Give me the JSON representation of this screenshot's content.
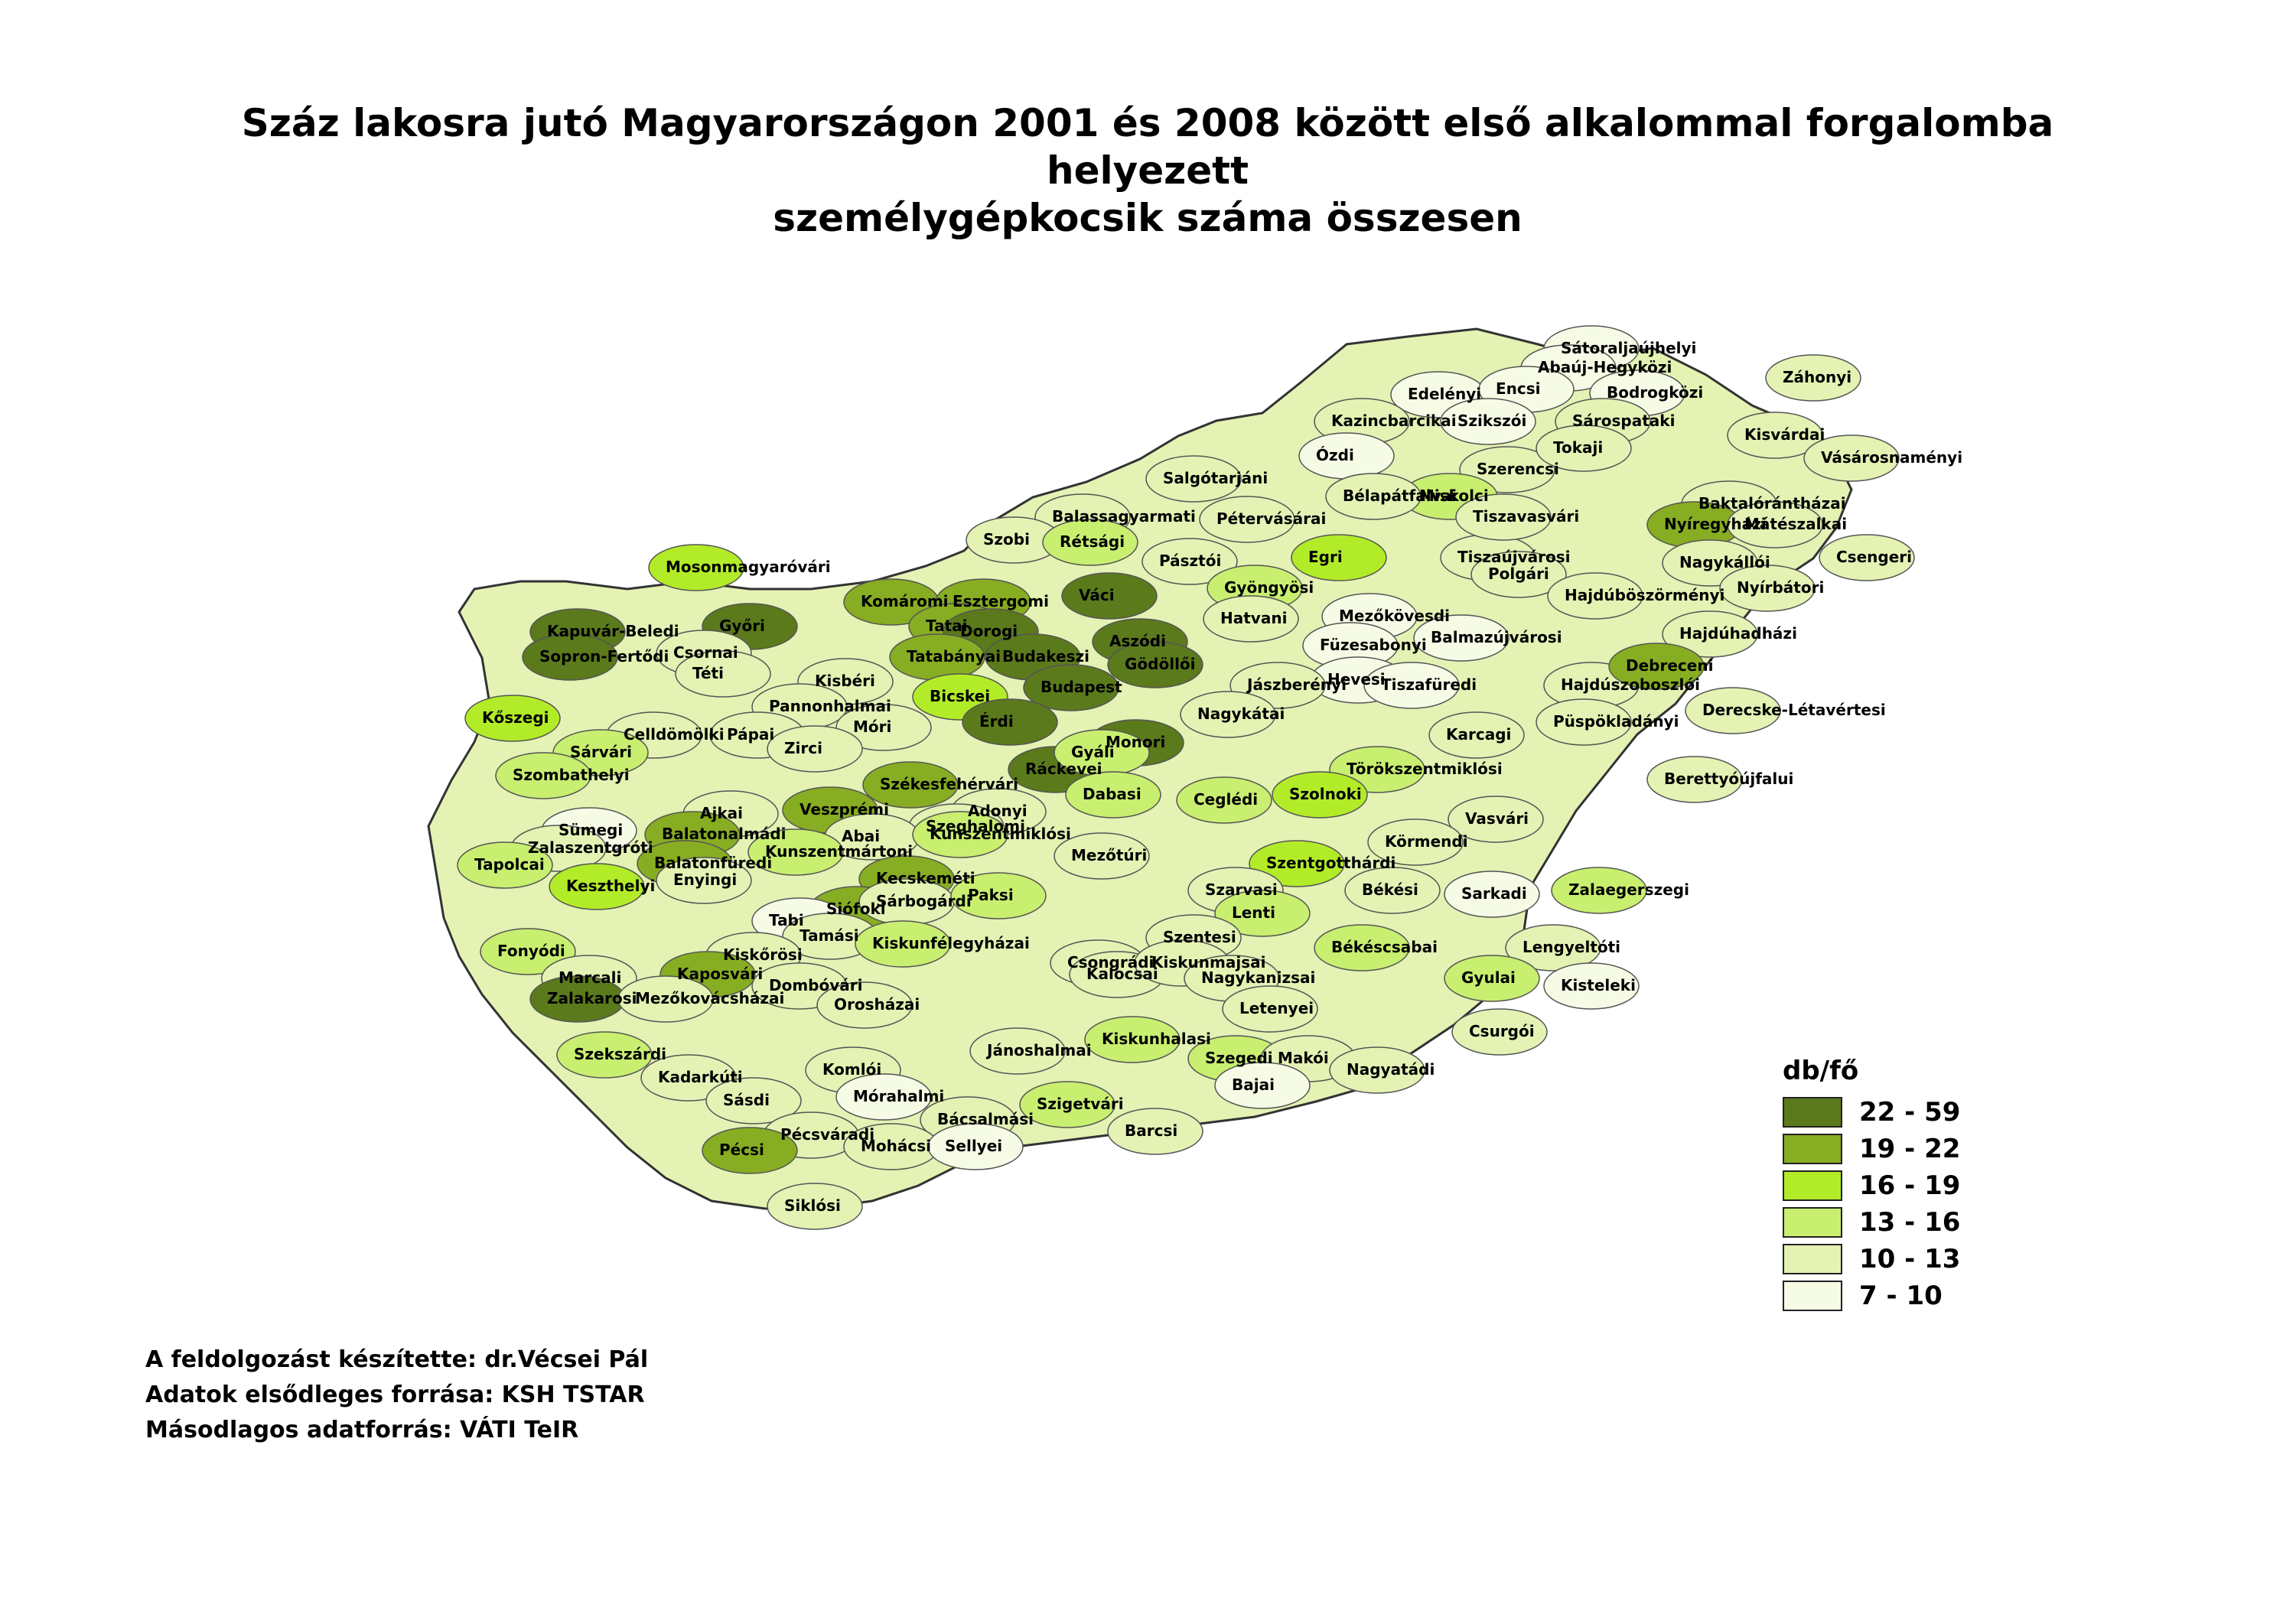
{
  "title": {
    "line1": "Száz lakosra jutó Magyarországon 2001 és 2008 között első alkalommal forgalomba helyezett",
    "line2": "személygépkocsik száma összesen"
  },
  "legend": {
    "title": "db/fő",
    "classes": [
      {
        "label": "22 - 59",
        "color": "#5b7a1c"
      },
      {
        "label": "19 - 22",
        "color": "#87ad22"
      },
      {
        "label": "16 - 19",
        "color": "#b2ec28"
      },
      {
        "label": "13 - 16",
        "color": "#c8ef70"
      },
      {
        "label": "10 - 13",
        "color": "#e4f2b4"
      },
      {
        "label": "7 - 10",
        "color": "#f6fbe6"
      }
    ]
  },
  "credits": [
    "A feldolgozást készítette: dr.Vécsei Pál",
    "Adatok elsődleges forrása: KSH TSTAR",
    "Másodlagos adatforrás: VÁTI TeIR"
  ],
  "regions": [
    {
      "name": "Sátoraljaújhelyi",
      "cls": 5
    },
    {
      "name": "Abaúj-Hegyközi",
      "cls": 5
    },
    {
      "name": "Edelényi",
      "cls": 5
    },
    {
      "name": "Encsi",
      "cls": 5
    },
    {
      "name": "Bodrogközi",
      "cls": 5
    },
    {
      "name": "Záhonyi",
      "cls": 4
    },
    {
      "name": "Kazincbarcikai",
      "cls": 4
    },
    {
      "name": "Szikszói",
      "cls": 5
    },
    {
      "name": "Sárospataki",
      "cls": 4
    },
    {
      "name": "Kisvárdai",
      "cls": 4
    },
    {
      "name": "Ózdi",
      "cls": 5
    },
    {
      "name": "Szerencsi",
      "cls": 4
    },
    {
      "name": "Tokaji",
      "cls": 4
    },
    {
      "name": "Vásárosnaményi",
      "cls": 4
    },
    {
      "name": "Salgótarjáni",
      "cls": 4
    },
    {
      "name": "Miskolci",
      "cls": 3
    },
    {
      "name": "Bélapátfalvai",
      "cls": 4
    },
    {
      "name": "Baktalórántházai",
      "cls": 4
    },
    {
      "name": "Balassagyarmati",
      "cls": 4
    },
    {
      "name": "Pétervásárai",
      "cls": 4
    },
    {
      "name": "Tiszaújvárosi",
      "cls": 4
    },
    {
      "name": "Nyíregyházi",
      "cls": 1
    },
    {
      "name": "Mátészalkai",
      "cls": 4
    },
    {
      "name": "Szobi",
      "cls": 4
    },
    {
      "name": "Rétsági",
      "cls": 3
    },
    {
      "name": "Pásztói",
      "cls": 4
    },
    {
      "name": "Egri",
      "cls": 2
    },
    {
      "name": "Tiszavasvári",
      "cls": 4
    },
    {
      "name": "Csengeri",
      "cls": 4
    },
    {
      "name": "Nagykállói",
      "cls": 4
    },
    {
      "name": "Mosonmagyaróvári",
      "cls": 2
    },
    {
      "name": "Komáromi",
      "cls": 1
    },
    {
      "name": "Esztergomi",
      "cls": 1
    },
    {
      "name": "Váci",
      "cls": 0
    },
    {
      "name": "Gyöngyösi",
      "cls": 3
    },
    {
      "name": "Mezőkövesdi",
      "cls": 5
    },
    {
      "name": "Polgári",
      "cls": 4
    },
    {
      "name": "Hajdúböszörményi",
      "cls": 4
    },
    {
      "name": "Nyírbátori",
      "cls": 4
    },
    {
      "name": "Győri",
      "cls": 0
    },
    {
      "name": "Tatai",
      "cls": 1
    },
    {
      "name": "Dorogi",
      "cls": 0
    },
    {
      "name": "Hatvani",
      "cls": 4
    },
    {
      "name": "Füzesabonyi",
      "cls": 5
    },
    {
      "name": "Hajdúhadházi",
      "cls": 4
    },
    {
      "name": "Kapuvár-Beledi",
      "cls": 0
    },
    {
      "name": "Csornai",
      "cls": 4
    },
    {
      "name": "Tatabányai",
      "cls": 1
    },
    {
      "name": "Budakeszi",
      "cls": 0
    },
    {
      "name": "Aszódi",
      "cls": 0
    },
    {
      "name": "Gödöllői",
      "cls": 0
    },
    {
      "name": "Hevesi",
      "cls": 5
    },
    {
      "name": "Balmazújvárosi",
      "cls": 5
    },
    {
      "name": "Sopron-Fertődi",
      "cls": 0
    },
    {
      "name": "Téti",
      "cls": 4
    },
    {
      "name": "Kisbéri",
      "cls": 4
    },
    {
      "name": "Budapest",
      "cls": 0
    },
    {
      "name": "Jászberényi",
      "cls": 4
    },
    {
      "name": "Tiszafüredi",
      "cls": 5
    },
    {
      "name": "Hajdúszoboszlói",
      "cls": 4
    },
    {
      "name": "Debreceni",
      "cls": 1
    },
    {
      "name": "Pannonhalmai",
      "cls": 4
    },
    {
      "name": "Bicskei",
      "cls": 2
    },
    {
      "name": "Püspökladányi",
      "cls": 4
    },
    {
      "name": "Derecske-Létavértesi",
      "cls": 4
    },
    {
      "name": "Kőszegi",
      "cls": 2
    },
    {
      "name": "Celldömölki",
      "cls": 4
    },
    {
      "name": "Pápai",
      "cls": 4
    },
    {
      "name": "Móri",
      "cls": 4
    },
    {
      "name": "Érdi",
      "cls": 0
    },
    {
      "name": "Nagykátai",
      "cls": 4
    },
    {
      "name": "Monori",
      "cls": 0
    },
    {
      "name": "Karcagi",
      "cls": 4
    },
    {
      "name": "Sárvári",
      "cls": 3
    },
    {
      "name": "Zirci",
      "cls": 4
    },
    {
      "name": "Ráckevei",
      "cls": 0
    },
    {
      "name": "Gyáli",
      "cls": 3
    },
    {
      "name": "Törökszentmiklósi",
      "cls": 3
    },
    {
      "name": "Berettyóújfalui",
      "cls": 4
    },
    {
      "name": "Szombathelyi",
      "cls": 3
    },
    {
      "name": "Székesfehérvári",
      "cls": 1
    },
    {
      "name": "Dabasi",
      "cls": 3
    },
    {
      "name": "Ceglédi",
      "cls": 3
    },
    {
      "name": "Szolnoki",
      "cls": 2
    },
    {
      "name": "Ajkai",
      "cls": 4
    },
    {
      "name": "Veszprémi",
      "cls": 1
    },
    {
      "name": "Adonyi",
      "cls": 4
    },
    {
      "name": "Szeghalomi",
      "cls": 4
    },
    {
      "name": "Vasvári",
      "cls": 4
    },
    {
      "name": "Sümegi",
      "cls": 5
    },
    {
      "name": "Balatonalmádi",
      "cls": 1
    },
    {
      "name": "Abai",
      "cls": 4
    },
    {
      "name": "Kunszentmiklósi",
      "cls": 3
    },
    {
      "name": "Mezőtúri",
      "cls": 4
    },
    {
      "name": "Körmendi",
      "cls": 4
    },
    {
      "name": "Zalaszentgróti",
      "cls": 4
    },
    {
      "name": "Balatonfüredi",
      "cls": 1
    },
    {
      "name": "Kunszentmártoni",
      "cls": 3
    },
    {
      "name": "Szentgotthárdi",
      "cls": 2
    },
    {
      "name": "Tapolcai",
      "cls": 3
    },
    {
      "name": "Enyingi",
      "cls": 4
    },
    {
      "name": "Kecskeméti",
      "cls": 1
    },
    {
      "name": "Szarvasi",
      "cls": 4
    },
    {
      "name": "Békési",
      "cls": 4
    },
    {
      "name": "Sarkadi",
      "cls": 5
    },
    {
      "name": "Zalaegerszegi",
      "cls": 3
    },
    {
      "name": "Keszthelyi",
      "cls": 2
    },
    {
      "name": "Siófoki",
      "cls": 1
    },
    {
      "name": "Sárbogárdi",
      "cls": 4
    },
    {
      "name": "Paksi",
      "cls": 3
    },
    {
      "name": "Csongrádi",
      "cls": 4
    },
    {
      "name": "Lenti",
      "cls": 3
    },
    {
      "name": "Fonyódi",
      "cls": 3
    },
    {
      "name": "Tabi",
      "cls": 5
    },
    {
      "name": "Tamási",
      "cls": 4
    },
    {
      "name": "Kiskunfélegyházai",
      "cls": 3
    },
    {
      "name": "Szentesi",
      "cls": 4
    },
    {
      "name": "Békéscsabai",
      "cls": 3
    },
    {
      "name": "Lengyeltóti",
      "cls": 4
    },
    {
      "name": "Kiskőrösi",
      "cls": 4
    },
    {
      "name": "Kalocsai",
      "cls": 4
    },
    {
      "name": "Kiskunmajsai",
      "cls": 4
    },
    {
      "name": "Nagykanizsai",
      "cls": 4
    },
    {
      "name": "Marcali",
      "cls": 4
    },
    {
      "name": "Kaposvári",
      "cls": 1
    },
    {
      "name": "Dombóvári",
      "cls": 4
    },
    {
      "name": "Orosházai",
      "cls": 4
    },
    {
      "name": "Gyulai",
      "cls": 3
    },
    {
      "name": "Kisteleki",
      "cls": 5
    },
    {
      "name": "Letenyei",
      "cls": 4
    },
    {
      "name": "Zalakarosi",
      "cls": 0
    },
    {
      "name": "Mezőkovácsházai",
      "cls": 4
    },
    {
      "name": "Csurgói",
      "cls": 4
    },
    {
      "name": "Szekszárdi",
      "cls": 3
    },
    {
      "name": "Jánoshalmai",
      "cls": 4
    },
    {
      "name": "Kiskunhalasi",
      "cls": 3
    },
    {
      "name": "Szegedi",
      "cls": 3
    },
    {
      "name": "Makói",
      "cls": 4
    },
    {
      "name": "Nagyatádi",
      "cls": 4
    },
    {
      "name": "Kadarkúti",
      "cls": 4
    },
    {
      "name": "Sásdi",
      "cls": 4
    },
    {
      "name": "Komlói",
      "cls": 4
    },
    {
      "name": "Mórahalmi",
      "cls": 5
    },
    {
      "name": "Bajai",
      "cls": 5
    },
    {
      "name": "Szigetvári",
      "cls": 3
    },
    {
      "name": "Pécsváradi",
      "cls": 4
    },
    {
      "name": "Bácsalmási",
      "cls": 4
    },
    {
      "name": "Barcsi",
      "cls": 4
    },
    {
      "name": "Pécsi",
      "cls": 1
    },
    {
      "name": "Mohácsi",
      "cls": 4
    },
    {
      "name": "Sellyei",
      "cls": 5
    },
    {
      "name": "Siklósi",
      "cls": 4
    }
  ]
}
